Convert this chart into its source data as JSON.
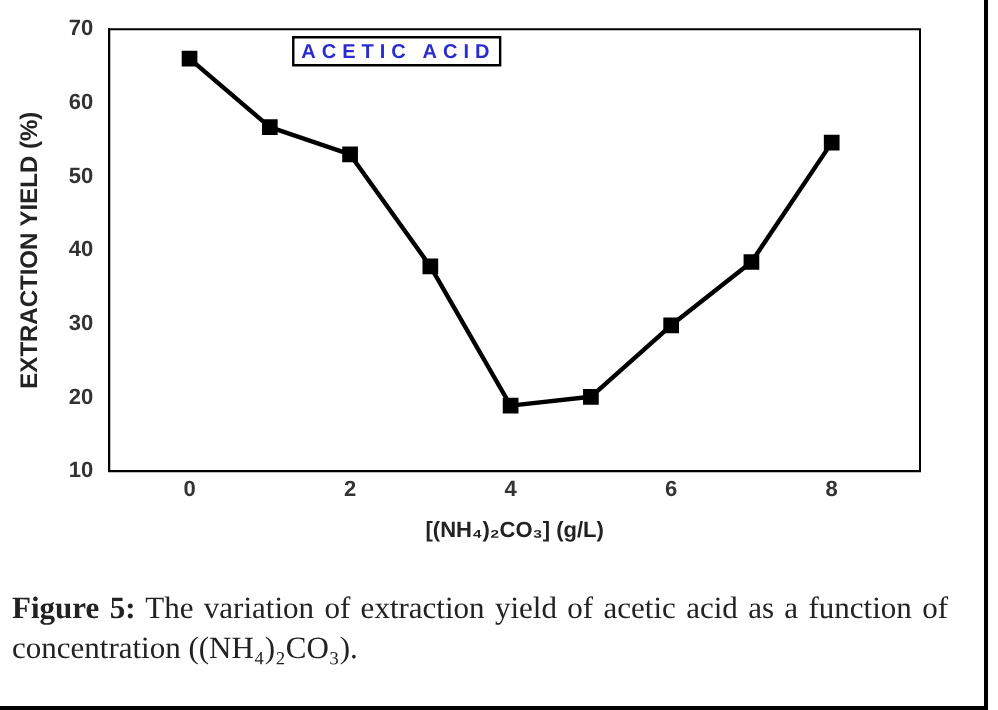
{
  "chart_data": {
    "type": "line",
    "xlabel": "[(NH₄)₂CO₃] (g/L)",
    "ylabel": "EXTRACTION YIELD (%)",
    "x": [
      0,
      1,
      2,
      3,
      4,
      5,
      6,
      7,
      8
    ],
    "series": [
      {
        "color": "#000000",
        "values": [
          66,
          56.7,
          53,
          37.8,
          18.9,
          20.1,
          29.8,
          38.4,
          54.6
        ]
      }
    ],
    "xlim": [
      -1,
      9.1
    ],
    "xticks": [
      0,
      2,
      4,
      6,
      8
    ],
    "ylim": [
      10,
      70
    ],
    "yticks": [
      10,
      20,
      30,
      40,
      50,
      60,
      70
    ],
    "marker": "square",
    "line_style": "solid",
    "grid": false,
    "legend": false,
    "annotations": [
      "ACETIC ACID",
      "Figure 5: The variation of extraction yield of acetic acid as a function of concentration ((NH₄)₂CO₃)."
    ]
  }
}
